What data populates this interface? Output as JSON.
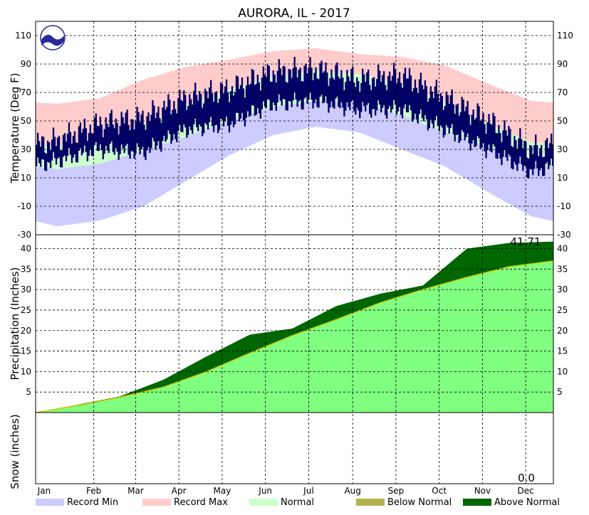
{
  "chart_data": {
    "type": "area",
    "title": "AURORA, IL - 2017",
    "months": [
      "Jan",
      "Feb",
      "Mar",
      "Apr",
      "May",
      "Jun",
      "Jul",
      "Aug",
      "Sep",
      "Oct",
      "Nov",
      "Dec"
    ],
    "temperature": {
      "ylabel": "Temperature (Deg F)",
      "ylim": [
        -30,
        120
      ],
      "ticks": [
        -30,
        -10,
        10,
        30,
        50,
        70,
        90,
        110
      ],
      "grid": true,
      "normal_high_monthly": [
        32,
        36,
        47,
        61,
        72,
        81,
        85,
        83,
        76,
        63,
        48,
        35
      ],
      "normal_low_monthly": [
        16,
        20,
        29,
        39,
        50,
        60,
        64,
        63,
        54,
        42,
        31,
        20
      ],
      "record_max_monthly": [
        62,
        66,
        79,
        88,
        93,
        99,
        101,
        97,
        95,
        89,
        76,
        64
      ],
      "record_min_monthly": [
        -24,
        -20,
        -10,
        8,
        26,
        40,
        46,
        42,
        30,
        18,
        0,
        -17
      ],
      "observed_high_monthly": [
        36,
        48,
        52,
        66,
        72,
        84,
        86,
        79,
        82,
        66,
        50,
        30
      ],
      "observed_low_monthly": [
        22,
        30,
        28,
        44,
        48,
        62,
        64,
        58,
        58,
        44,
        30,
        14
      ]
    },
    "precipitation": {
      "ylabel": "Precipitation (Inches)",
      "ylim": [
        0,
        42
      ],
      "ticks": [
        5,
        10,
        15,
        20,
        25,
        30,
        35,
        40
      ],
      "grid": true,
      "annotation": "41.71",
      "normal_cumulative_month_end": [
        1.8,
        3.7,
        6.2,
        9.9,
        14.5,
        18.8,
        22.7,
        26.8,
        30.0,
        33.0,
        35.6,
        37.0
      ],
      "observed_cumulative_month_end": [
        2.0,
        3.9,
        8.0,
        13.6,
        19.0,
        20.5,
        26.0,
        29.0,
        31.0,
        40.0,
        41.4,
        41.71
      ]
    },
    "snow": {
      "ylabel": "Snow (inches)",
      "annotation": "0.0",
      "total": 0.0,
      "grid": true
    },
    "legend": {
      "placement": "bottom",
      "entries": [
        {
          "label": "Record Min",
          "color": "#ccccff"
        },
        {
          "label": "Record Max",
          "color": "#ffcccc"
        },
        {
          "label": "Normal",
          "color": "#ccffcc"
        },
        {
          "label": "Below Normal",
          "color": "#b3b34d"
        },
        {
          "label": "Above Normal",
          "color": "#006600"
        }
      ]
    },
    "colors": {
      "observed_temperature": "#000066",
      "normal_precip_area": "#80ff80",
      "normal_precip_line": "#cccc00"
    }
  }
}
